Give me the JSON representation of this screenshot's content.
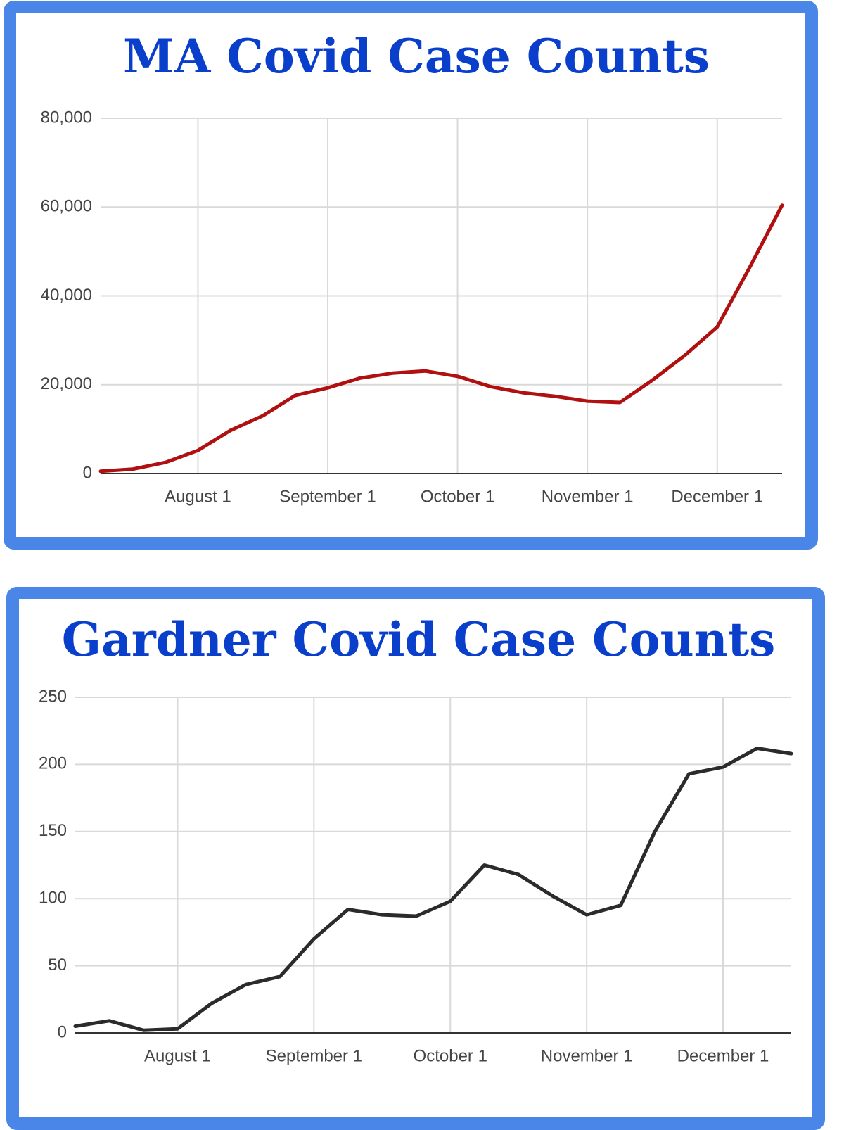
{
  "chart_data": [
    {
      "type": "line",
      "title": "MA Covid Case Counts",
      "categories": [
        null,
        null,
        null,
        "August 1",
        null,
        null,
        null,
        "September 1",
        null,
        null,
        null,
        "October 1",
        null,
        null,
        null,
        "November 1",
        null,
        null,
        null,
        "December 1",
        null,
        null
      ],
      "series": [
        {
          "color": "#b01010",
          "values": [
            500,
            1000,
            2500,
            5200,
            9700,
            13000,
            17600,
            19300,
            21500,
            22600,
            23100,
            21900,
            19600,
            18200,
            17400,
            16300,
            16000,
            21000,
            26600,
            33000,
            46400,
            60400
          ]
        }
      ],
      "ylim": [
        0,
        80000
      ],
      "yticks": [
        0,
        {
          "value": 20000,
          "label": "20,000"
        },
        {
          "value": 40000,
          "label": "40,000"
        },
        {
          "value": 60000,
          "label": "60,000"
        },
        {
          "value": 80000,
          "label": "80,000"
        }
      ],
      "grid": true
    },
    {
      "type": "line",
      "title": "Gardner Covid Case Counts",
      "categories": [
        null,
        null,
        null,
        "August 1",
        null,
        null,
        null,
        "September 1",
        null,
        null,
        null,
        "October 1",
        null,
        null,
        null,
        "November 1",
        null,
        null,
        null,
        "December 1",
        null,
        null
      ],
      "series": [
        {
          "color": "#2b2b2b",
          "values": [
            5,
            9,
            2,
            3,
            22,
            36,
            42,
            70,
            92,
            88,
            87,
            98,
            125,
            118,
            102,
            88,
            95,
            150,
            193,
            198,
            212,
            208
          ]
        }
      ],
      "ylim": [
        0,
        250
      ],
      "yticks": [
        0,
        50,
        100,
        150,
        200,
        250
      ],
      "grid": true
    }
  ]
}
